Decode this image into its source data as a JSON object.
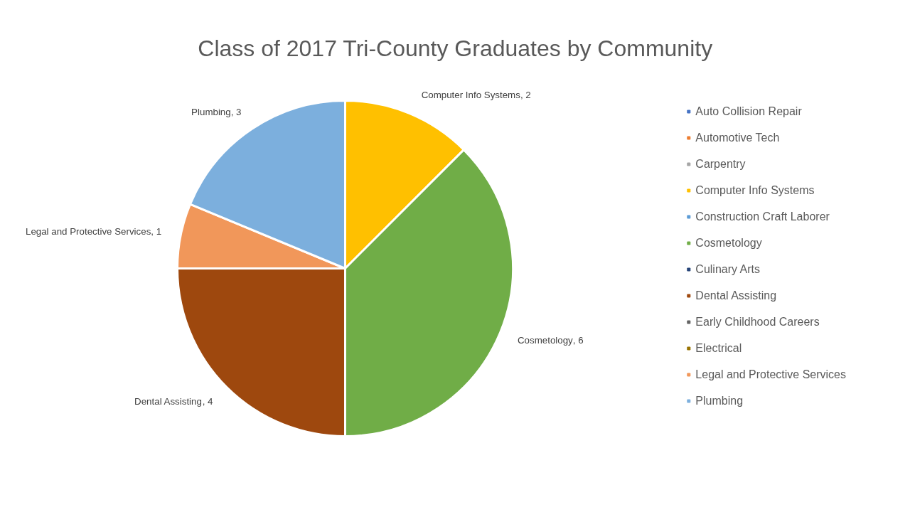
{
  "chart_data": {
    "type": "pie",
    "title": "Class of 2017 Tri-County Graduates by Community",
    "categories": [
      "Auto Collision Repair",
      "Automotive Tech",
      "Carpentry",
      "Computer Info Systems",
      "Construction Craft Laborer",
      "Cosmetology",
      "Culinary Arts",
      "Dental Assisting",
      "Early Childhood Careers",
      "Electrical",
      "Legal and Protective Services",
      "Plumbing"
    ],
    "values": [
      null,
      null,
      null,
      2,
      null,
      6,
      null,
      4,
      null,
      null,
      1,
      3
    ],
    "colors": [
      "#4472c4",
      "#ed7d31",
      "#a5a5a5",
      "#ffc000",
      "#5b9bd5",
      "#70ad47",
      "#264478",
      "#9e480e",
      "#636363",
      "#997300",
      "#f1975a",
      "#7cafdd"
    ],
    "value_labels": [
      null,
      null,
      null,
      ", 2",
      null,
      ", 6",
      null,
      ", 4",
      null,
      null,
      ", 1",
      ", 3"
    ],
    "legend": "right"
  }
}
